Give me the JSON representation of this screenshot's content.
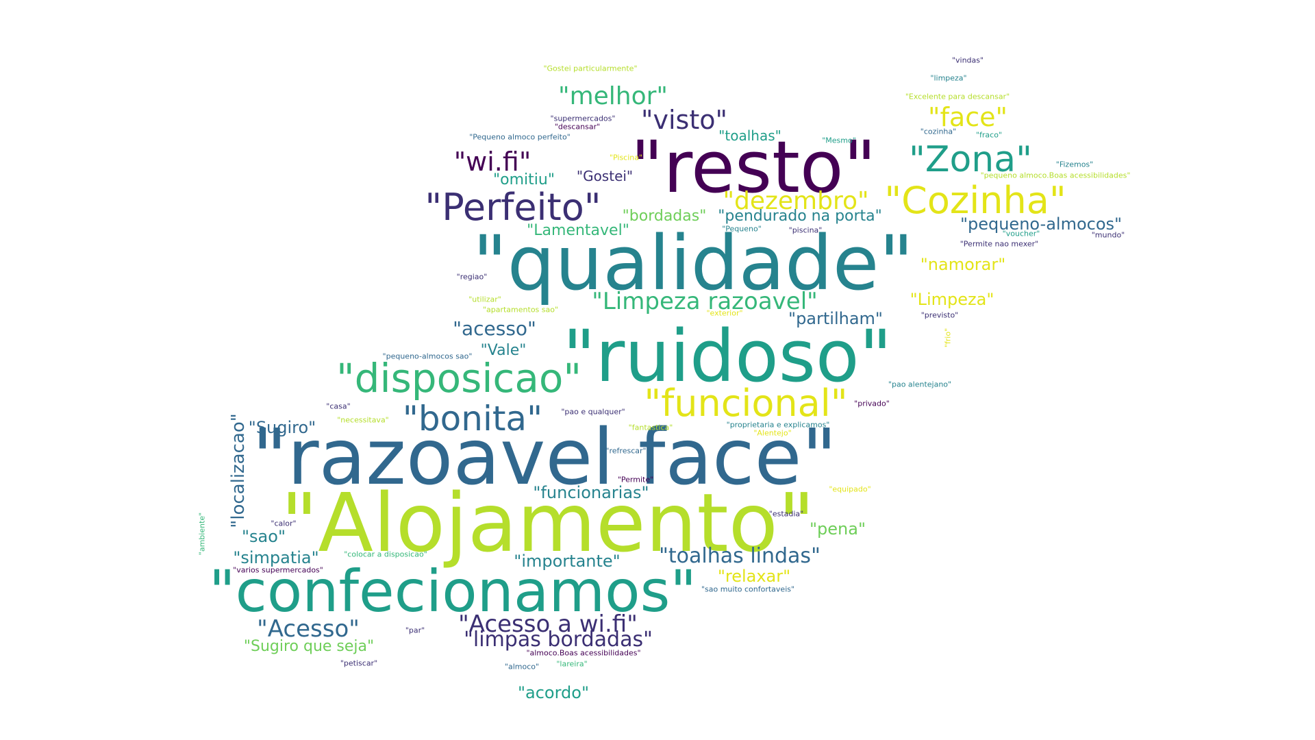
{
  "palette": {
    "dark_purple": "#440154",
    "indigo": "#3b2f73",
    "blue": "#31688e",
    "teal": "#26838e",
    "green_teal": "#1f9e89",
    "green": "#35b779",
    "light_green": "#6ece58",
    "yellow_green": "#b5de2b",
    "yellow": "#e3e418"
  },
  "words": [
    "\"Alojamento\"",
    "\"razoavel face\"",
    "\"qualidade\"",
    "\"ruidoso\"",
    "\"resto\"",
    "\"confecionamos\"",
    "\"disposicao\"",
    "\"Perfeito\"",
    "\"Cozinha\"",
    "\"funcional\"",
    "\"bonita\"",
    "\"Zona\"",
    "\"melhor\"",
    "\"visto\"",
    "\"face\"",
    "\"wi.fi\"",
    "\"dezembro\"",
    "\"Limpeza razoavel\"",
    "\"Acesso a wi.fi\"",
    "\"Acesso\"",
    "\"toalhas lindas\"",
    "\"limpas bordadas\"",
    "\"acesso\"",
    "\"localizacao\"",
    "\"Sugiro\"",
    "\"Vale\"",
    "\"pequeno-almocos\"",
    "\"partilham\"",
    "\"namorar\"",
    "\"Limpeza\"",
    "\"funcionarias\"",
    "\"pena\"",
    "\"relaxar\"",
    "\"importante\"",
    "\"simpatia\"",
    "\"sao\"",
    "\"acordo\"",
    "\"Sugiro que seja\"",
    "\"bordadas\"",
    "\"pendurado na porta\"",
    "\"Lamentavel\"",
    "\"omitiu\"",
    "\"Gostei\"",
    "\"toalhas\"",
    "\"Gostei particularmente\"",
    "\"vindas\"",
    "\"limpeza\"",
    "\"Excelente para descansar\"",
    "\"supermercados\"",
    "\"descansar\"",
    "\"Pequeno almoco perfeito\"",
    "\"Mesmo\"",
    "\"cozinha\"",
    "\"fraco\"",
    "\"Piscina\"",
    "\"Fizemos\"",
    "\"pequeno almoco.Boas acessibilidades\"",
    "\"Pequeno\"",
    "\"piscina\"",
    "\"voucher\"",
    "\"mundo\"",
    "\"Permite nao mexer\"",
    "\"regiao\"",
    "\"utilizar\"",
    "\"apartamentos sao\"",
    "\"exterior\"",
    "\"previsto\"",
    "\"frio\"",
    "\"pequeno-almocos sao\"",
    "\"pao alentejano\"",
    "\"casa\"",
    "\"necessitava\"",
    "\"pao e qualquer\"",
    "\"privado\"",
    "\"fantastica\"",
    "\"proprietaria e explicamos\"",
    "\"Alentejo\"",
    "\"refrescar\"",
    "\"Permite\"",
    "\"equipado\"",
    "\"ambiente\"",
    "\"calor\"",
    "\"estadia\"",
    "\"colocar a disposicao\"",
    "\"varios supermercados\"",
    "\"sao muito confortaveis\"",
    "\"par\"",
    "\"almoco.Boas acessibilidades\"",
    "\"petiscar\"",
    "\"almoco\"",
    "\"lareira\""
  ]
}
